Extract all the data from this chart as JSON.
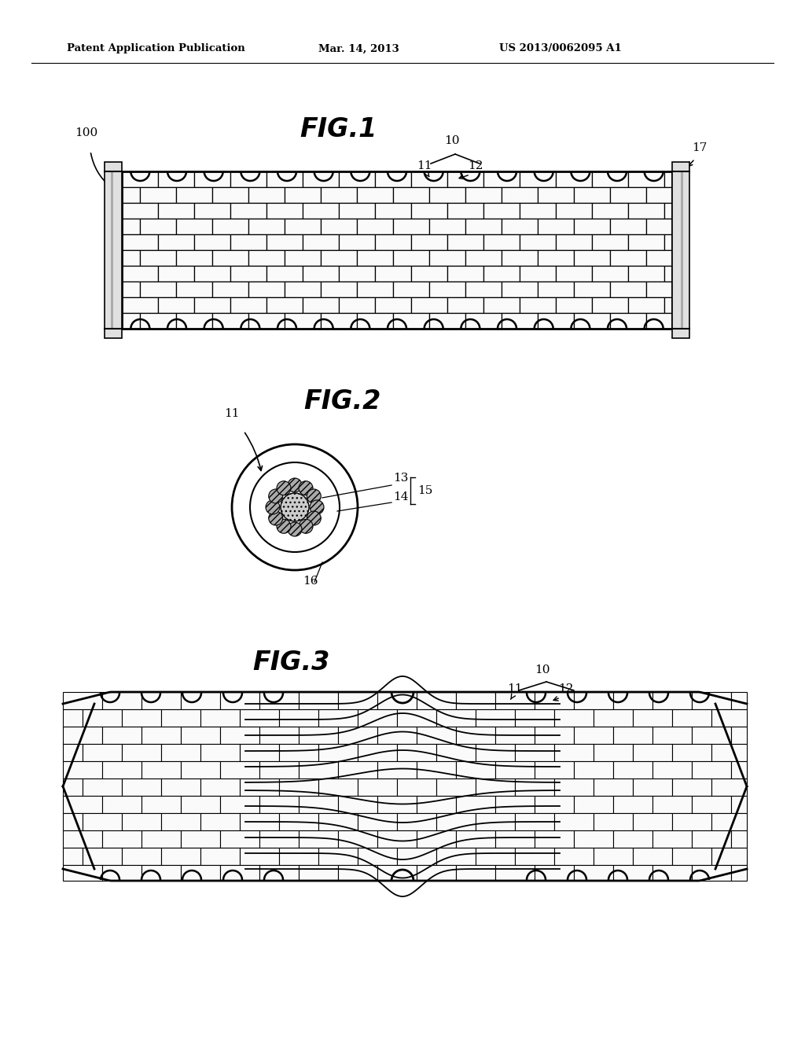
{
  "bg_color": "#ffffff",
  "header_text": [
    "Patent Application Publication",
    "Mar. 14, 2013",
    "US 2013/0062095 A1"
  ],
  "fig1_title": "FIG.1",
  "fig2_title": "FIG.2",
  "fig3_title": "FIG.3",
  "fig1_label_100": "100",
  "fig1_label_10": "10",
  "fig1_label_11": "11",
  "fig1_label_12": "12",
  "fig1_label_17": "17",
  "fig2_label_11": "11",
  "fig2_label_13": "13",
  "fig2_label_14": "14",
  "fig2_label_15": "15",
  "fig2_label_16": "16",
  "fig3_label_10": "10",
  "fig3_label_11": "11",
  "fig3_label_12": "12",
  "line_color": "#000000",
  "fill_color": "#ffffff"
}
